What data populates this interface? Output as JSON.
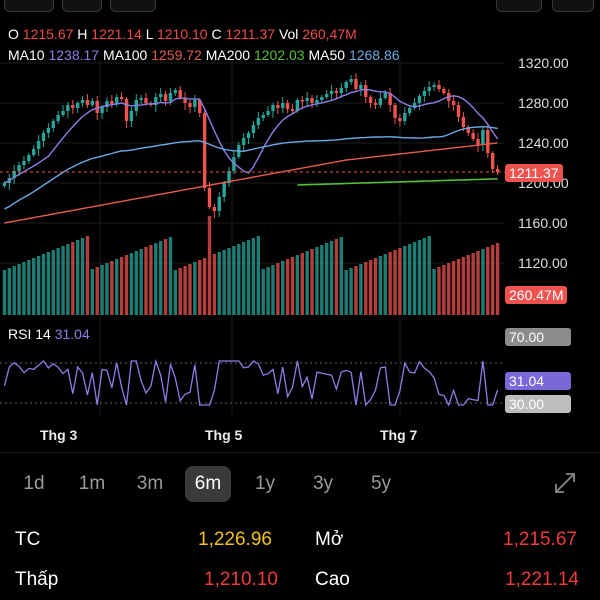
{
  "ohlc": {
    "o_label": "O",
    "o": "1215.67",
    "h_label": "H",
    "h": "1221.14",
    "l_label": "L",
    "l": "1210.10",
    "c_label": "C",
    "c": "1211.37",
    "vol_label": "Vol",
    "vol": "260,47M"
  },
  "ma": {
    "ma10_label": "MA10",
    "ma10": "1238.17",
    "ma100_label": "MA100",
    "ma100": "1259.72",
    "ma200_label": "MA200",
    "ma200": "1202.03",
    "ma50_label": "MA50",
    "ma50": "1268.86"
  },
  "price_axis": [
    "1320.00",
    "1280.00",
    "1240.00",
    "1200.00",
    "1160.00",
    "1120.00"
  ],
  "current_price_badge": "1211.37",
  "volume_badge": "260.47M",
  "rsi": {
    "label": "RSI 14",
    "value": "31.04",
    "upper": "70.00",
    "lower": "30.00",
    "current_badge": "31.04"
  },
  "months": [
    "Thg 3",
    "Thg 5",
    "Thg 7"
  ],
  "periods": [
    {
      "label": "1d",
      "active": false
    },
    {
      "label": "1m",
      "active": false
    },
    {
      "label": "3m",
      "active": false
    },
    {
      "label": "6m",
      "active": true
    },
    {
      "label": "1y",
      "active": false
    },
    {
      "label": "3y",
      "active": false
    },
    {
      "label": "5y",
      "active": false
    }
  ],
  "stats": {
    "tc_label": "TC",
    "tc_value": "1,226.96",
    "open_label": "Mở",
    "open_value": "1,215.67",
    "low_label": "Thấp",
    "low_value": "1,210.10",
    "high_label": "Cao",
    "high_value": "1,221.14"
  },
  "colors": {
    "up": "#27a59a",
    "down": "#ef5350",
    "ma10": "#8b7fe6",
    "ma100": "#e35b4e",
    "ma200": "#53c038",
    "ma50": "#6aa8e6",
    "yellow": "#f2c21b"
  },
  "chart_data": {
    "type": "candlestick",
    "ylim": [
      1160,
      1320
    ],
    "closes": [
      1200,
      1205,
      1212,
      1218,
      1222,
      1228,
      1234,
      1242,
      1250,
      1255,
      1262,
      1268,
      1272,
      1278,
      1275,
      1280,
      1283,
      1278,
      1282,
      1270,
      1276,
      1282,
      1279,
      1286,
      1284,
      1262,
      1272,
      1283,
      1285,
      1280,
      1278,
      1286,
      1289,
      1282,
      1290,
      1293,
      1285,
      1280,
      1276,
      1283,
      1270,
      1195,
      1176,
      1172,
      1186,
      1200,
      1212,
      1226,
      1238,
      1245,
      1250,
      1258,
      1265,
      1268,
      1272,
      1278,
      1275,
      1280,
      1274,
      1272,
      1283,
      1282,
      1285,
      1280,
      1283,
      1286,
      1289,
      1292,
      1290,
      1295,
      1301,
      1304,
      1294,
      1298,
      1286,
      1280,
      1278,
      1285,
      1290,
      1278,
      1265,
      1262,
      1270,
      1275,
      1280,
      1287,
      1292,
      1296,
      1298,
      1294,
      1290,
      1282,
      1278,
      1266,
      1256,
      1250,
      1244,
      1238,
      1253,
      1230,
      1214,
      1211
    ],
    "rsi_range": [
      30,
      70
    ]
  }
}
